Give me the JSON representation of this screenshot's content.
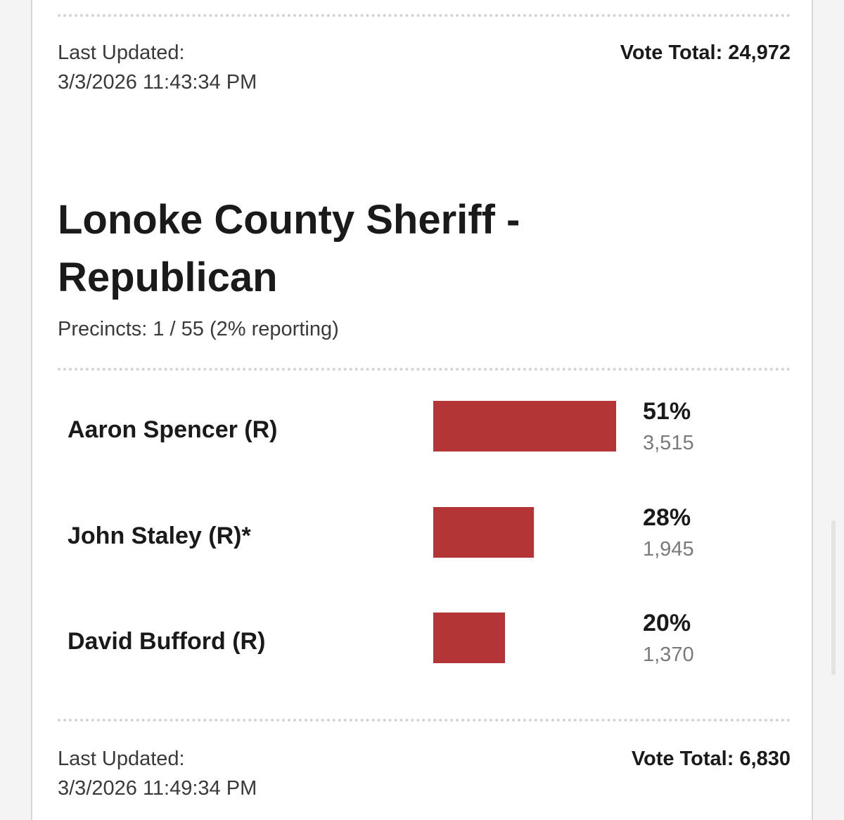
{
  "top_meta": {
    "updated_label": "Last Updated:",
    "updated_time": "3/3/2026 11:43:34 PM",
    "vote_total": "Vote Total: 24,972"
  },
  "race": {
    "title_line1": "Lonoke County Sheriff -",
    "title_line2": "Republican",
    "precincts": "Precincts: 1 / 55 (2% reporting)",
    "candidates": [
      {
        "name": "Aaron Spencer (R)",
        "pct": "51%",
        "votes": "3,515",
        "share": 51
      },
      {
        "name": "John Staley (R)*",
        "pct": "28%",
        "votes": "1,945",
        "share": 28
      },
      {
        "name": "David Bufford (R)",
        "pct": "20%",
        "votes": "1,370",
        "share": 20
      }
    ],
    "bar_color": "#b33535"
  },
  "bottom_meta": {
    "updated_label": "Last Updated:",
    "updated_time": "3/3/2026 11:49:34 PM",
    "vote_total": "Vote Total: 6,830"
  }
}
